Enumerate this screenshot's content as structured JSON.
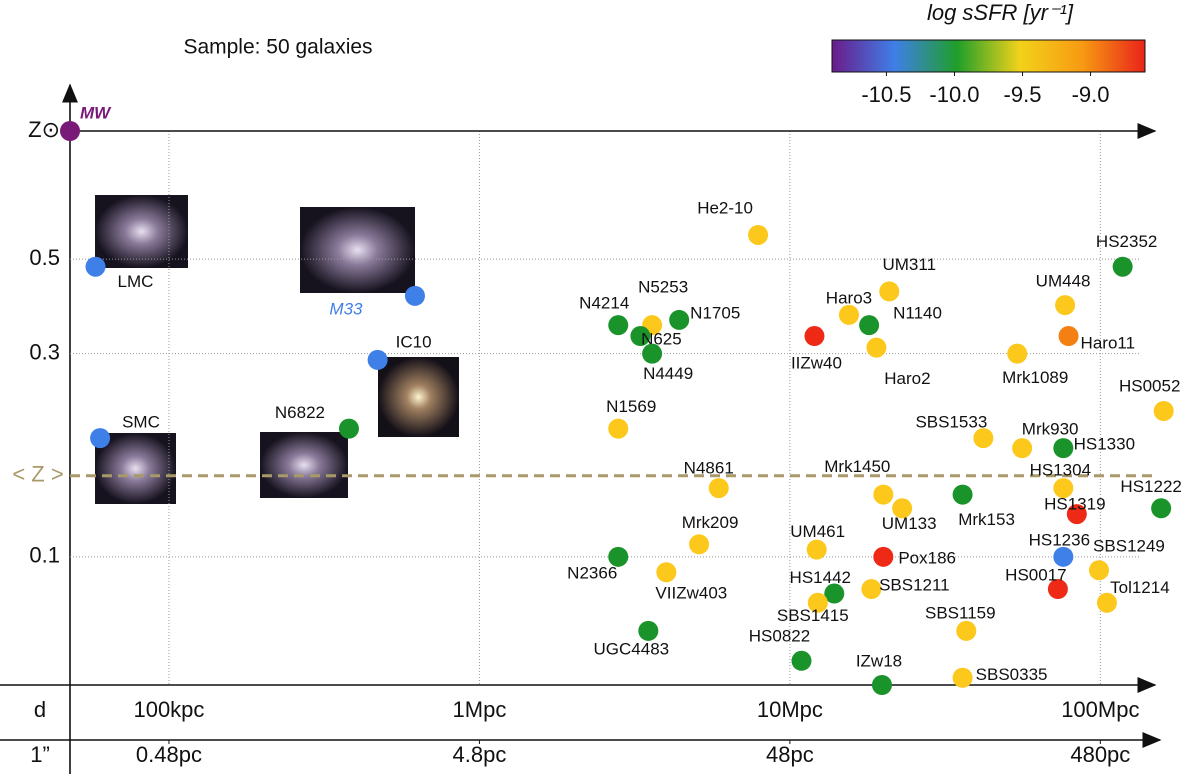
{
  "chart_data": {
    "type": "scatter",
    "annotation": "Sample: 50 galaxies",
    "xscale": "log",
    "yscale": "log",
    "grid": true,
    "xlim": [
      0.048,
      150
    ],
    "xticks": [
      {
        "value": 0.1,
        "label": "100kpc"
      },
      {
        "value": 1,
        "label": "1Mpc"
      },
      {
        "value": 10,
        "label": "10Mpc"
      },
      {
        "value": 100,
        "label": "100Mpc"
      }
    ],
    "xlabel": "d",
    "x2ticks": [
      {
        "value": 0.1,
        "label": "0.48pc"
      },
      {
        "value": 1,
        "label": "4.8pc"
      },
      {
        "value": 10,
        "label": "48pc"
      },
      {
        "value": 100,
        "label": "480pc"
      }
    ],
    "x2label": "1”",
    "ylim": [
      0.05,
      1
    ],
    "yticks": [
      {
        "value": 1,
        "label": "Z⊙"
      },
      0.5,
      0.3,
      0.1
    ],
    "mean_line": {
      "value": 0.155,
      "label": "< Z >",
      "color": "#a89968"
    },
    "colorbar": {
      "label": "log sSFR [yr⁻¹]",
      "lim": [
        -10.9,
        -8.6
      ],
      "ticks": [
        -10.5,
        {
          "value": -10,
          "label": "-10.0"
        },
        -9.5,
        {
          "value": -9,
          "label": "-9.0"
        }
      ],
      "colors": [
        "#6a1b8a",
        "#3f7fe8",
        "#1f9e2a",
        "#f2d21a",
        "#f79a12",
        "#e8231a"
      ]
    },
    "point_labels": [
      "MW",
      "LMC",
      "SMC",
      "M33",
      "IC10",
      "N6822",
      "He2-10",
      "HS2352",
      "UM311",
      "UM448",
      "Haro3",
      "N1140",
      "IIZw40",
      "Haro11",
      "Haro2",
      "Mrk1089",
      "N4214",
      "N5253",
      "N1705",
      "N625",
      "N4449",
      "N1569",
      "HS0052",
      "SBS1533",
      "Mrk930",
      "HS1330",
      "HS1304",
      "HS1222",
      "HS1319",
      "N4861",
      "Mrk1450",
      "UM133",
      "Mrk153",
      "Mrk209",
      "UM461",
      "Pox186",
      "HS1236",
      "SBS1249",
      "N2366",
      "VIIZw403",
      "HS1442",
      "SBS1211",
      "SBS1415",
      "HS0017",
      "Tol1214",
      "SBS1159",
      "UGC4483",
      "HS0822",
      "IZw18",
      "SBS0335"
    ],
    "x": [
      0.048,
      0.058,
      0.06,
      0.62,
      0.47,
      0.38,
      7.9,
      118,
      20.9,
      77,
      15.5,
      18,
      12,
      79,
      19,
      54,
      2.8,
      3.6,
      4.4,
      3.3,
      3.6,
      2.8,
      160,
      42,
      56,
      76,
      76,
      157,
      84,
      5.9,
      20,
      23,
      36,
      5.1,
      12.2,
      20,
      76,
      99,
      2.8,
      4.0,
      13.9,
      18.3,
      12.3,
      73,
      105,
      37,
      3.5,
      10.9,
      19.8,
      36
    ],
    "values": [
      1,
      0.48,
      0.19,
      0.41,
      0.29,
      0.2,
      0.57,
      0.48,
      0.42,
      0.39,
      0.37,
      0.35,
      0.33,
      0.33,
      0.31,
      0.3,
      0.35,
      0.35,
      0.36,
      0.33,
      0.3,
      0.2,
      0.22,
      0.19,
      0.18,
      0.18,
      0.145,
      0.13,
      0.126,
      0.145,
      0.14,
      0.13,
      0.14,
      0.107,
      0.104,
      0.1,
      0.1,
      0.093,
      0.1,
      0.092,
      0.082,
      0.084,
      0.078,
      0.084,
      0.078,
      0.067,
      0.067,
      0.057,
      0.05,
      0.052
    ],
    "point_colors": [
      "#7a1a78",
      "#3f7fe8",
      "#3f7fe8",
      "#3f7fe8",
      "#3f7fe8",
      "#1a932a",
      "#fcc81c",
      "#1a932a",
      "#fcc81c",
      "#fcc81c",
      "#fcc81c",
      "#1a932a",
      "#ee2a16",
      "#f47f12",
      "#fcc81c",
      "#fcc81c",
      "#1a932a",
      "#fcc81c",
      "#1a932a",
      "#1a932a",
      "#1a932a",
      "#fcc81c",
      "#fcc81c",
      "#fcc81c",
      "#fcc81c",
      "#1a932a",
      "#fcc81c",
      "#1a932a",
      "#ee2a16",
      "#fcc81c",
      "#fcc81c",
      "#fcc81c",
      "#1a932a",
      "#fcc81c",
      "#fcc81c",
      "#ee2a16",
      "#3f7fe8",
      "#fcc81c",
      "#1a932a",
      "#fcc81c",
      "#1a932a",
      "#fcc81c",
      "#fcc81c",
      "#ee2a16",
      "#fcc81c",
      "#fcc81c",
      "#1a932a",
      "#1a932a",
      "#1a932a",
      "#fcc81c"
    ]
  }
}
